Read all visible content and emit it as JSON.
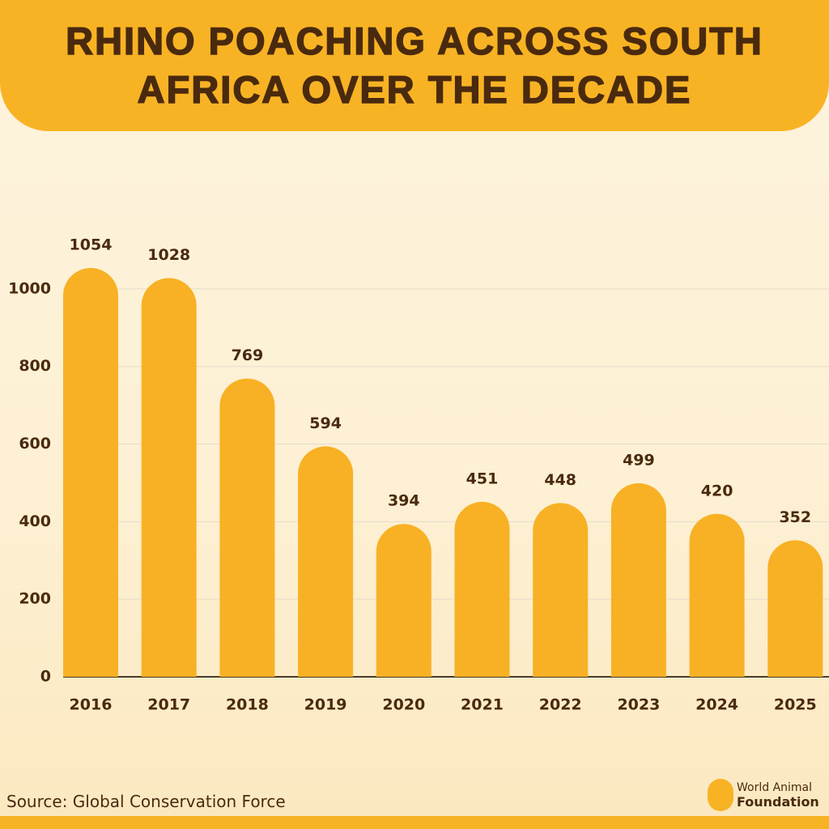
{
  "chart_data": {
    "type": "bar",
    "title": "RHINO POACHING ACROSS SOUTH AFRICA OVER THE DECADE",
    "categories": [
      "2016",
      "2017",
      "2018",
      "2019",
      "2020",
      "2021",
      "2022",
      "2023",
      "2024",
      "2025"
    ],
    "values": [
      1054,
      1028,
      769,
      594,
      394,
      451,
      448,
      499,
      420,
      352
    ],
    "color": "#f8b124",
    "ylim": [
      0,
      1100
    ],
    "yticks": [
      0,
      200,
      400,
      600,
      800,
      1000
    ],
    "grid": true,
    "source": "Source:  Global Conservation Force",
    "logo": [
      "World Animal",
      "Foundation"
    ]
  }
}
